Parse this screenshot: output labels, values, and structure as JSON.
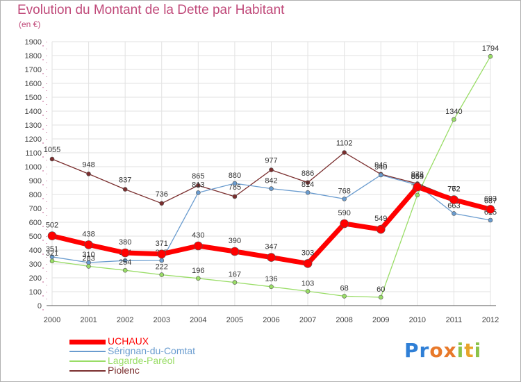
{
  "title": "Evolution du Montant de la Dette par Habitant",
  "subtitle": "(en €)",
  "colors": {
    "title": "#c04a7a",
    "uchaux": "#ff0000",
    "serignan": "#6a9ccf",
    "lagarde": "#99dd66",
    "piolenc": "#7a2e2e"
  },
  "logo": {
    "letters": [
      "P",
      "r",
      "o",
      "x",
      "i",
      "t",
      "i"
    ],
    "colors": [
      "#2f7fd6",
      "#2f7fd6",
      "#e8792a",
      "#e8792a",
      "#8bc34a",
      "#e8a32a",
      "#8bc34a"
    ]
  },
  "chart_data": {
    "type": "line",
    "x": [
      "2000",
      "2001",
      "2002",
      "2003",
      "2004",
      "2005",
      "2006",
      "2007",
      "2008",
      "2009",
      "2010",
      "2011",
      "2012"
    ],
    "ylim": [
      0,
      1900
    ],
    "yticks": [
      "0",
      "100",
      "200",
      "300",
      "400",
      "500",
      "600",
      "700",
      "800",
      "900",
      "1000",
      "1100",
      "1200",
      "1300",
      "1400",
      "1500",
      "1600",
      "1700",
      "1800",
      "1900"
    ],
    "grid": true,
    "legend": "bottom-left",
    "series": [
      {
        "name": "Piolenc",
        "values": [
          1055,
          948,
          837,
          736,
          865,
          785,
          977,
          886,
          1102,
          946,
          878,
          772,
          687
        ],
        "labels": [
          "1055",
          "948",
          "837",
          "736",
          "865",
          "785",
          "977",
          "886",
          "1102",
          "946",
          "878",
          "772",
          "687"
        ]
      },
      {
        "name": "Sérignan-du-Comtat",
        "values": [
          351,
          310,
          324,
          325,
          813,
          880,
          842,
          814,
          768,
          940,
          869,
          663,
          615
        ],
        "labels": [
          "351",
          "310",
          "324",
          "325",
          "813",
          "880",
          "842",
          "814",
          "768",
          "940",
          "869",
          "663",
          "615"
        ]
      },
      {
        "name": "Lagarde-Paréol",
        "values": [
          321,
          283,
          254,
          222,
          196,
          167,
          136,
          103,
          68,
          60,
          796,
          1340,
          1794
        ],
        "labels": [
          "321",
          "283",
          "254",
          "222",
          "196",
          "167",
          "136",
          "103",
          "68",
          "60",
          "796",
          "1340",
          "1794"
        ]
      },
      {
        "name": "UCHAUX",
        "values": [
          502,
          438,
          380,
          371,
          430,
          390,
          347,
          303,
          590,
          549,
          854,
          762,
          693
        ],
        "labels": [
          "502",
          "438",
          "380",
          "371",
          "430",
          "390",
          "347",
          "303",
          "590",
          "549",
          "854",
          "762",
          "693"
        ]
      }
    ],
    "legend_order": [
      "UCHAUX",
      "Sérignan-du-Comtat",
      "Lagarde-Paréol",
      "Piolenc"
    ]
  }
}
